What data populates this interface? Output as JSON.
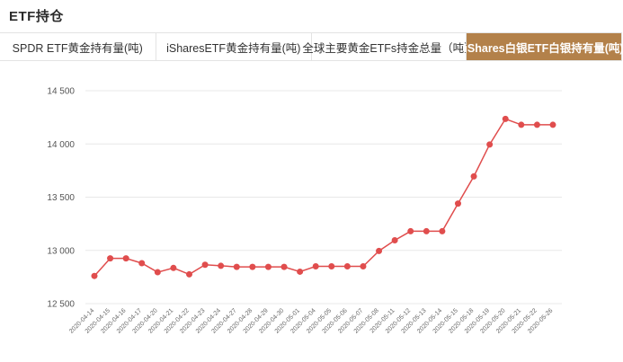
{
  "header": {
    "title": "ETF持仓"
  },
  "tabs": [
    {
      "label": "SPDR ETF黄金持有量(吨)",
      "active": false
    },
    {
      "label": "iSharesETF黄金持有量(吨)",
      "active": false
    },
    {
      "label": "全球主要黄金ETFs持金总量（吨）",
      "active": false
    },
    {
      "label": "iShares白银ETF白银持有量(吨)",
      "active": true
    }
  ],
  "colors": {
    "accent": "#b3814a",
    "line": "#e04d4d",
    "grid": "#e8e8e8"
  },
  "chart_data": {
    "type": "line",
    "title": "",
    "xlabel": "",
    "ylabel": "",
    "ylim": [
      12500,
      14500
    ],
    "yticks": [
      12500,
      13000,
      13500,
      14000,
      14500
    ],
    "ytick_labels": [
      "12 500",
      "13 000",
      "13 500",
      "14 000",
      "14 500"
    ],
    "grid": true,
    "categories": [
      "2020-04-14",
      "2020-04-15",
      "2020-04-16",
      "2020-04-17",
      "2020-04-20",
      "2020-04-21",
      "2020-04-22",
      "2020-04-23",
      "2020-04-24",
      "2020-04-27",
      "2020-04-28",
      "2020-04-29",
      "2020-04-30",
      "2020-05-01",
      "2020-05-04",
      "2020-05-05",
      "2020-05-06",
      "2020-05-07",
      "2020-05-08",
      "2020-05-11",
      "2020-05-12",
      "2020-05-13",
      "2020-05-14",
      "2020-05-15",
      "2020-05-18",
      "2020-05-19",
      "2020-05-20",
      "2020-05-21",
      "2020-05-22",
      "2020-05-26"
    ],
    "series": [
      {
        "values": [
          12760,
          12925,
          12925,
          12880,
          12795,
          12835,
          12775,
          12865,
          12855,
          12845,
          12845,
          12845,
          12845,
          12800,
          12850,
          12850,
          12850,
          12850,
          12995,
          13095,
          13180,
          13180,
          13180,
          13440,
          13695,
          13995,
          14235,
          14180,
          14180,
          14180
        ]
      }
    ]
  }
}
